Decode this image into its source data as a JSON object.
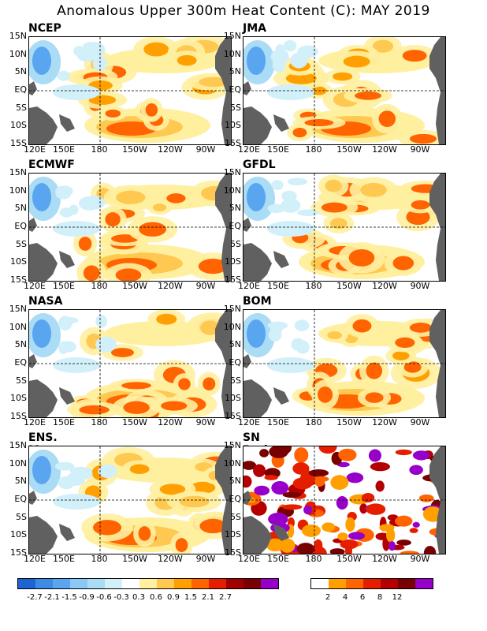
{
  "title": "Anomalous Upper 300m Heat Content (C): MAY 2019",
  "panels": [
    {
      "name": "NCEP"
    },
    {
      "name": "JMA"
    },
    {
      "name": "ECMWF"
    },
    {
      "name": "GFDL"
    },
    {
      "name": "NASA"
    },
    {
      "name": "BOM"
    },
    {
      "name": "ENS. Mean"
    },
    {
      "name": "SN Ratio"
    }
  ],
  "lat_labels": [
    "15N",
    "10N",
    "5N",
    "EQ",
    "5S",
    "10S",
    "15S"
  ],
  "lon_labels": [
    "120E",
    "150E",
    "180",
    "150W",
    "120W",
    "90W"
  ],
  "colorbar_anomaly": {
    "colors": [
      "#1e64d2",
      "#3c8ce6",
      "#5aa5f0",
      "#8cc8f5",
      "#aadcf5",
      "#d2f0fa",
      "#ffffff",
      "#fff0a0",
      "#ffc850",
      "#ffa000",
      "#ff6400",
      "#e61e00",
      "#a00000",
      "#780000",
      "#9600c8"
    ],
    "labels": [
      "-2.7",
      "-2.1",
      "-1.5",
      "-0.9",
      "-0.6",
      "-0.3",
      "0.3",
      "0.6",
      "0.9",
      "1.5",
      "2.1",
      "2.7"
    ]
  },
  "colorbar_sn": {
    "colors": [
      "#ffffff",
      "#ffa000",
      "#ff6400",
      "#e61e00",
      "#b40000",
      "#780000",
      "#9600c8"
    ],
    "labels": [
      "2",
      "4",
      "6",
      "8",
      "12"
    ]
  }
}
